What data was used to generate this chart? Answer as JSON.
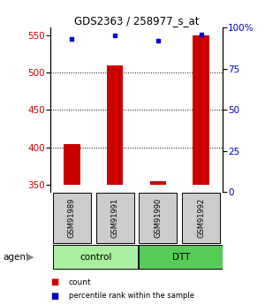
{
  "title": "GDS2363 / 258977_s_at",
  "samples": [
    "GSM91989",
    "GSM91991",
    "GSM91990",
    "GSM91992"
  ],
  "groups": [
    "control",
    "control",
    "DTT",
    "DTT"
  ],
  "counts": [
    404,
    509,
    355,
    549
  ],
  "percentile_ranks": [
    93,
    95,
    92,
    96
  ],
  "ylim_left": [
    340,
    560
  ],
  "ylim_right": [
    0,
    100
  ],
  "yticks_left": [
    350,
    400,
    450,
    500,
    550
  ],
  "yticks_right": [
    0,
    25,
    50,
    75,
    100
  ],
  "yticklabels_right": [
    "0",
    "25",
    "50",
    "75",
    "100%"
  ],
  "grid_yticks": [
    400,
    450,
    500
  ],
  "bar_color": "#cc0000",
  "dot_color": "#0000cc",
  "bar_bottom": 350,
  "control_color": "#aaeea a",
  "dtt_color": "#55dd55",
  "sample_box_color": "#cccccc",
  "left_tick_color": "#cc0000",
  "right_tick_color": "#0000cc",
  "legend_count_color": "#cc0000",
  "legend_pct_color": "#0000cc"
}
